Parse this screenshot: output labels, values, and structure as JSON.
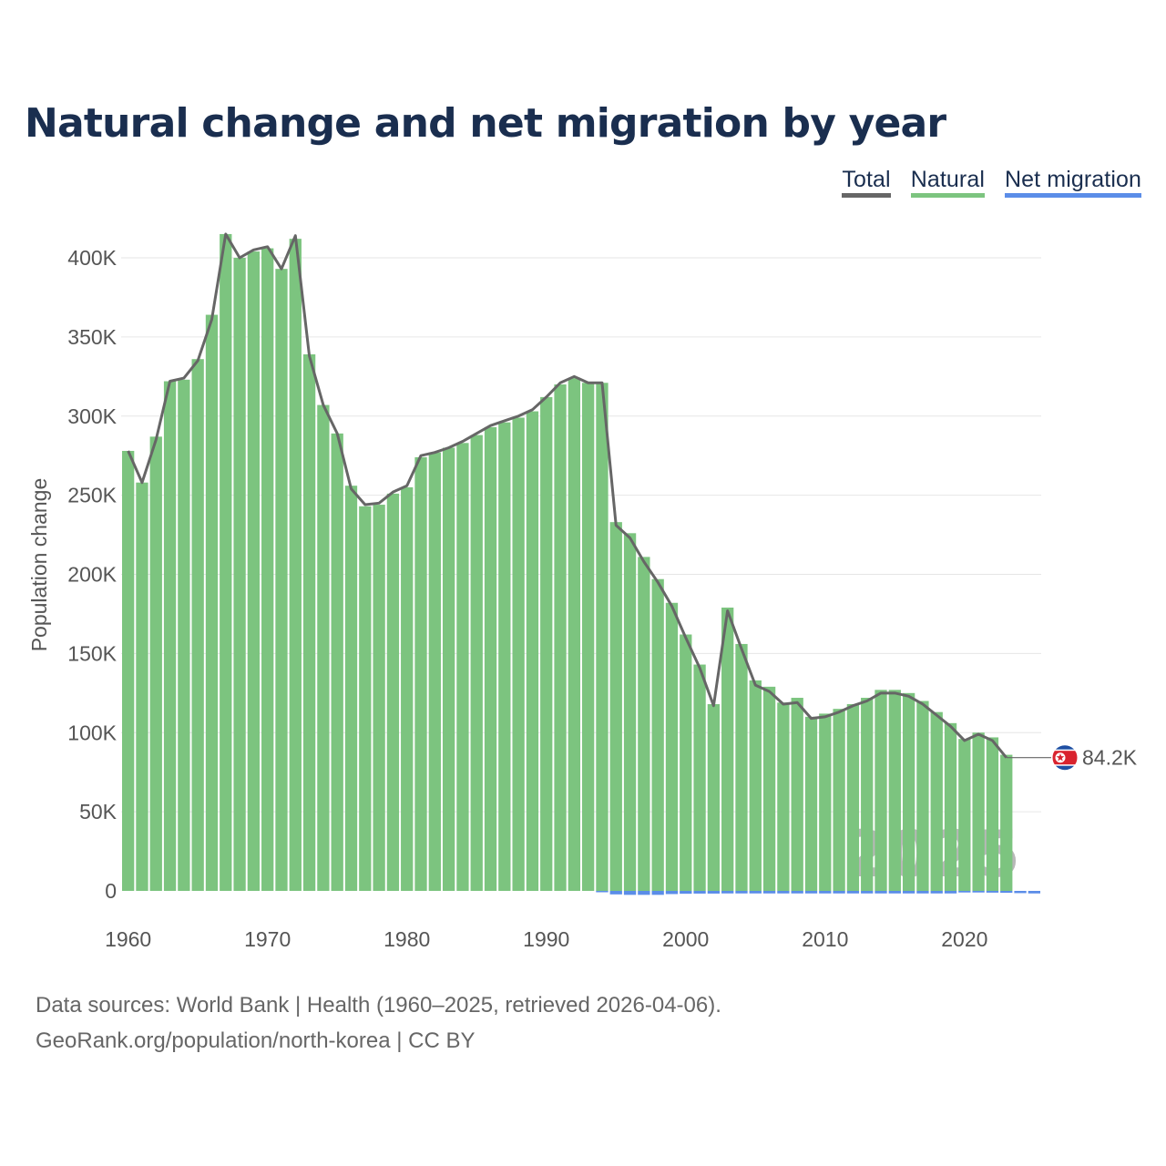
{
  "title": "Natural change and net migration by year",
  "legend": [
    {
      "label": "Total",
      "color": "#666666"
    },
    {
      "label": "Natural",
      "color": "#7cc47f"
    },
    {
      "label": "Net migration",
      "color": "#5b8de8"
    }
  ],
  "source": {
    "line1": "Data sources: World Bank | Health (1960–2025, retrieved 2026-04-06).",
    "line2": "GeoRank.org/population/north-korea | CC BY"
  },
  "chart_data": {
    "type": "bar",
    "ylabel": "Population change",
    "ylim": [
      0,
      430000
    ],
    "yticks": [
      0,
      50000,
      100000,
      150000,
      200000,
      250000,
      300000,
      350000,
      400000
    ],
    "ytick_labels": [
      "0",
      "50K",
      "100K",
      "150K",
      "200K",
      "250K",
      "300K",
      "350K",
      "400K"
    ],
    "xlim": [
      1959.5,
      2025.5
    ],
    "xticks": [
      1960,
      1970,
      1980,
      1990,
      2000,
      2010,
      2020
    ],
    "xtick_labels": [
      "1960",
      "1970",
      "1980",
      "1990",
      "2000",
      "2010",
      "2020"
    ],
    "years": [
      1960,
      1961,
      1962,
      1963,
      1964,
      1965,
      1966,
      1967,
      1968,
      1969,
      1970,
      1971,
      1972,
      1973,
      1974,
      1975,
      1976,
      1977,
      1978,
      1979,
      1980,
      1981,
      1982,
      1983,
      1984,
      1985,
      1986,
      1987,
      1988,
      1989,
      1990,
      1991,
      1992,
      1993,
      1994,
      1995,
      1996,
      1997,
      1998,
      1999,
      2000,
      2001,
      2002,
      2003,
      2004,
      2005,
      2006,
      2007,
      2008,
      2009,
      2010,
      2011,
      2012,
      2013,
      2014,
      2015,
      2016,
      2017,
      2018,
      2019,
      2020,
      2021,
      2022,
      2023,
      2024,
      2025
    ],
    "series": [
      {
        "name": "Natural",
        "color": "#7cc47f",
        "values": [
          278000,
          258000,
          287000,
          322000,
          323000,
          336000,
          364000,
          415000,
          400000,
          404000,
          406000,
          393000,
          412000,
          339000,
          307000,
          289000,
          256000,
          243000,
          244000,
          251000,
          255000,
          274000,
          277000,
          280000,
          283000,
          288000,
          293000,
          296000,
          299000,
          303000,
          312000,
          320000,
          324000,
          321000,
          321000,
          233000,
          226000,
          211000,
          197000,
          182000,
          162000,
          143000,
          118000,
          179000,
          156000,
          133000,
          129000,
          119000,
          122000,
          110000,
          112000,
          115000,
          118000,
          122000,
          127000,
          127000,
          125000,
          120000,
          113000,
          106000,
          96000,
          100000,
          97000,
          86000,
          null,
          null
        ]
      },
      {
        "name": "Net migration",
        "color": "#5b8de8",
        "values": [
          0,
          0,
          0,
          0,
          0,
          0,
          0,
          0,
          0,
          0,
          0,
          0,
          0,
          0,
          0,
          0,
          0,
          0,
          0,
          0,
          0,
          0,
          0,
          0,
          0,
          0,
          0,
          0,
          0,
          0,
          0,
          0,
          0,
          0,
          -500,
          -2200,
          -2500,
          -2500,
          -2500,
          -2000,
          -1800,
          -1700,
          -1700,
          -1600,
          -1600,
          -1600,
          -1600,
          -1600,
          -1600,
          -1600,
          -1600,
          -1600,
          -1600,
          -1600,
          -1600,
          -1600,
          -1600,
          -1600,
          -1600,
          -1600,
          -1000,
          -1000,
          -1100,
          -1200,
          -1400,
          -1600
        ]
      },
      {
        "name": "Total",
        "color": "#666666",
        "values": [
          278000,
          258000,
          285000,
          322000,
          324000,
          335000,
          361000,
          415000,
          400000,
          405000,
          407000,
          393000,
          414000,
          338000,
          307000,
          289000,
          254000,
          244000,
          245000,
          252000,
          256000,
          275000,
          277000,
          280000,
          284000,
          289000,
          294000,
          297000,
          300000,
          304000,
          312000,
          321000,
          325000,
          321000,
          321000,
          231000,
          223000,
          208000,
          195000,
          180000,
          160000,
          141000,
          117000,
          177000,
          153000,
          130000,
          126000,
          118000,
          119000,
          109000,
          110000,
          113000,
          117000,
          120000,
          125000,
          125000,
          123000,
          118000,
          111000,
          104000,
          95000,
          99000,
          95000,
          84200,
          null,
          null
        ]
      }
    ],
    "end_label": "84.2K",
    "year_watermark": "2025"
  }
}
